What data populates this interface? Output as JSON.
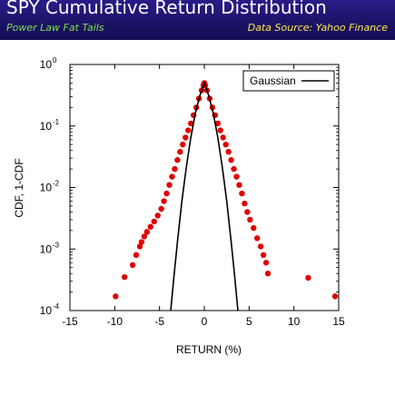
{
  "header": {
    "title": "SPY Cumulative Return Distribution",
    "subtitle": "Power Law Fat Tails",
    "source": "Data Source: Yahoo Finance"
  },
  "colors": {
    "banner": "#1d1368",
    "title": "#ffffff",
    "subtitle": "#7fe04c",
    "source": "#ffe94a",
    "points": "#e00000",
    "gaussian": "#000000"
  },
  "chart_data": {
    "type": "scatter",
    "xlabel": "RETURN (%)",
    "ylabel": "CDF, 1-CDF",
    "xlim": [
      -15,
      15
    ],
    "ylim": [
      0.0001,
      1
    ],
    "yscale": "log",
    "x_ticks": [
      "-15",
      "-10",
      "-5",
      "0",
      "5",
      "10",
      "15"
    ],
    "y_ticks": [
      {
        "base": "10",
        "exp": "-4"
      },
      {
        "base": "10",
        "exp": "-3"
      },
      {
        "base": "10",
        "exp": "-2"
      },
      {
        "base": "10",
        "exp": "-1"
      },
      {
        "base": "10",
        "exp": "0"
      }
    ],
    "legend": {
      "label": "Gaussian",
      "position": "top-right"
    },
    "series": [
      {
        "name": "",
        "marker": "circle",
        "points": [
          [
            -9.9,
            0.00017
          ],
          [
            -8.9,
            0.00035
          ],
          [
            -8.0,
            0.00055
          ],
          [
            -7.6,
            0.0008
          ],
          [
            -7.2,
            0.0011
          ],
          [
            -7.0,
            0.0013
          ],
          [
            -6.7,
            0.0016
          ],
          [
            -6.4,
            0.0019
          ],
          [
            -6.0,
            0.0023
          ],
          [
            -5.6,
            0.0028
          ],
          [
            -5.2,
            0.0035
          ],
          [
            -4.8,
            0.0045
          ],
          [
            -4.5,
            0.006
          ],
          [
            -4.2,
            0.008
          ],
          [
            -3.9,
            0.011
          ],
          [
            -3.6,
            0.015
          ],
          [
            -3.3,
            0.02
          ],
          [
            -3.0,
            0.028
          ],
          [
            -2.7,
            0.038
          ],
          [
            -2.4,
            0.05
          ],
          [
            -2.1,
            0.065
          ],
          [
            -1.8,
            0.085
          ],
          [
            -1.5,
            0.11
          ],
          [
            -1.2,
            0.15
          ],
          [
            -0.9,
            0.2
          ],
          [
            -0.6,
            0.28
          ],
          [
            -0.3,
            0.38
          ],
          [
            -0.1,
            0.46
          ],
          [
            0.0,
            0.5
          ],
          [
            0.1,
            0.46
          ],
          [
            0.3,
            0.38
          ],
          [
            0.6,
            0.28
          ],
          [
            0.9,
            0.2
          ],
          [
            1.2,
            0.15
          ],
          [
            1.5,
            0.11
          ],
          [
            1.8,
            0.085
          ],
          [
            2.1,
            0.065
          ],
          [
            2.4,
            0.05
          ],
          [
            2.7,
            0.038
          ],
          [
            3.0,
            0.028
          ],
          [
            3.3,
            0.02
          ],
          [
            3.6,
            0.015
          ],
          [
            3.9,
            0.011
          ],
          [
            4.2,
            0.008
          ],
          [
            4.5,
            0.0055
          ],
          [
            4.8,
            0.004
          ],
          [
            5.1,
            0.003
          ],
          [
            5.5,
            0.0022
          ],
          [
            5.9,
            0.0015
          ],
          [
            6.3,
            0.0011
          ],
          [
            6.6,
            0.0008
          ],
          [
            6.9,
            0.0006
          ],
          [
            7.1,
            0.0004
          ],
          [
            11.6,
            0.00034
          ],
          [
            14.6,
            0.00017
          ]
        ]
      },
      {
        "name": "Gaussian",
        "type": "line",
        "points": [
          [
            -3.75,
            0.0001
          ],
          [
            -3.4,
            0.00035
          ],
          [
            -3.0,
            0.0013
          ],
          [
            -2.5,
            0.006
          ],
          [
            -2.0,
            0.022
          ],
          [
            -1.5,
            0.066
          ],
          [
            -1.0,
            0.16
          ],
          [
            -0.5,
            0.31
          ],
          [
            0.0,
            0.5
          ],
          [
            0.5,
            0.31
          ],
          [
            1.0,
            0.16
          ],
          [
            1.5,
            0.066
          ],
          [
            2.0,
            0.022
          ],
          [
            2.5,
            0.006
          ],
          [
            3.0,
            0.0013
          ],
          [
            3.4,
            0.00035
          ],
          [
            3.75,
            0.0001
          ]
        ]
      }
    ]
  }
}
